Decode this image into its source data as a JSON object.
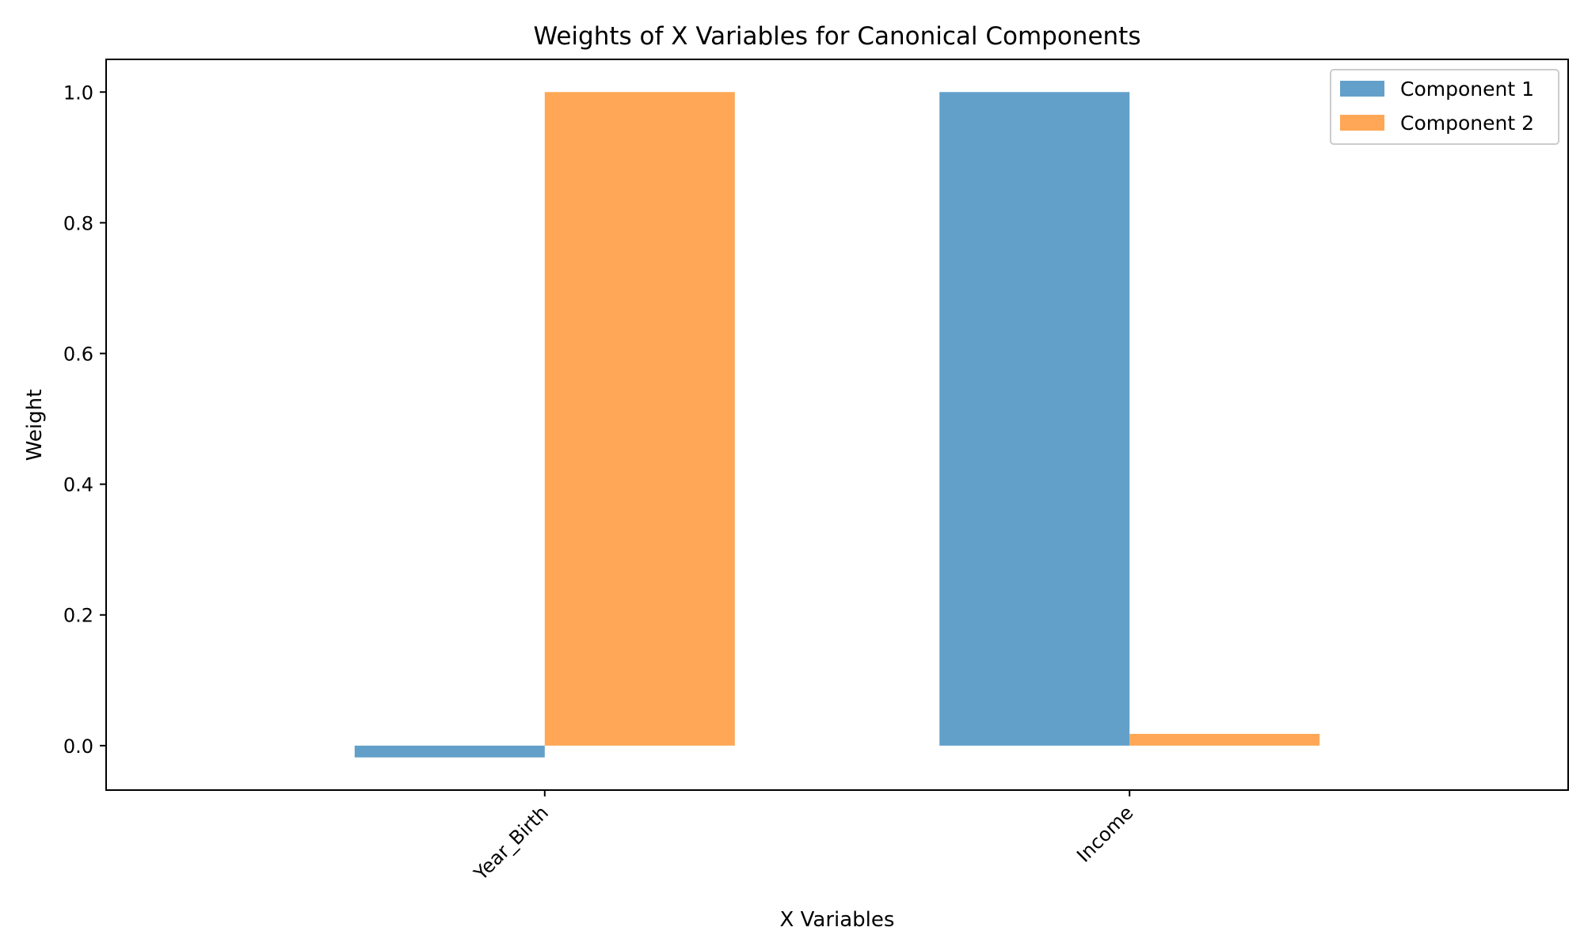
{
  "chart_data": {
    "type": "bar",
    "title": "Weights of X Variables for Canonical Components",
    "xlabel": "X Variables",
    "ylabel": "Weight",
    "categories": [
      "Year_Birth",
      "Income"
    ],
    "series": [
      {
        "name": "Component 1",
        "color": "#62a0ca",
        "values": [
          -0.018,
          1.0
        ]
      },
      {
        "name": "Component 2",
        "color": "#ffa756",
        "values": [
          1.0,
          0.018
        ]
      }
    ],
    "ylim": [
      -0.068,
      1.05
    ],
    "yticks": [
      "0.0",
      "0.2",
      "0.4",
      "0.6",
      "0.8",
      "1.0"
    ],
    "grid": false,
    "legend": "top-right"
  }
}
